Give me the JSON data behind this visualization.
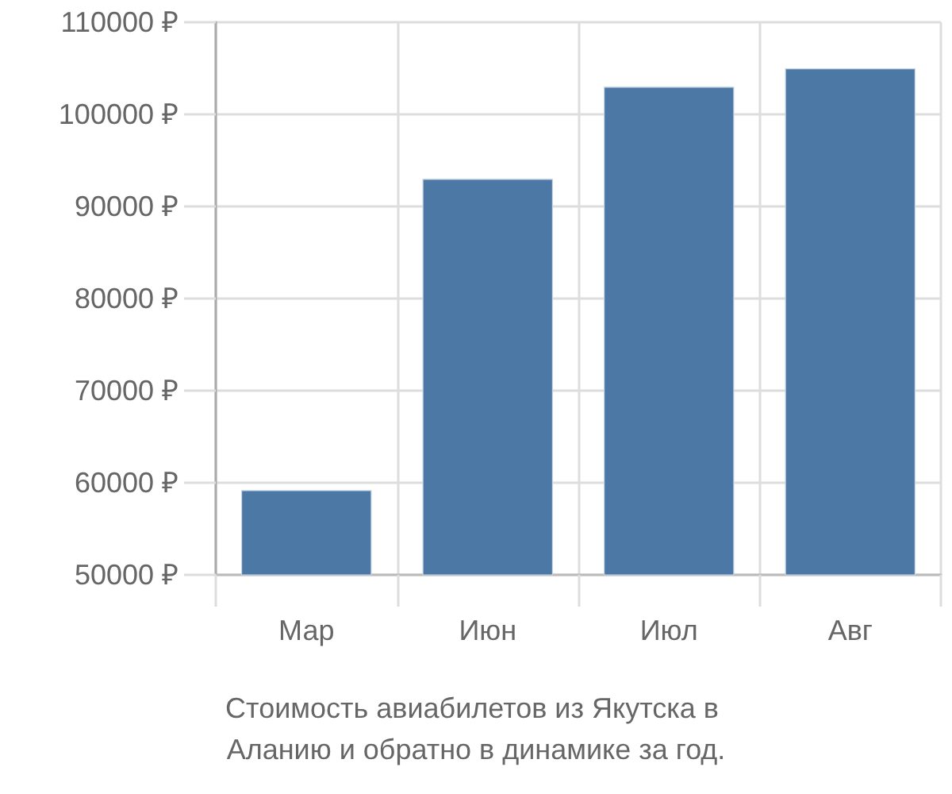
{
  "chart_data": {
    "type": "bar",
    "title": "Стоимость авиабилетов из Якутска в Аланию и обратно в динамике за год.",
    "categories": [
      "Мар",
      "Июн",
      "Июл",
      "Авг"
    ],
    "values": [
      59200,
      93000,
      103000,
      105000
    ],
    "color": "#4c78a6",
    "ylim": [
      50000,
      110000
    ],
    "yticks": [
      {
        "value": 50000,
        "label": "50000 ₽"
      },
      {
        "value": 60000,
        "label": "60000 ₽"
      },
      {
        "value": 70000,
        "label": "70000 ₽"
      },
      {
        "value": 80000,
        "label": "80000 ₽"
      },
      {
        "value": 90000,
        "label": "90000 ₽"
      },
      {
        "value": 100000,
        "label": "100000 ₽"
      },
      {
        "value": 110000,
        "label": "110000 ₽"
      }
    ],
    "grid": true
  }
}
